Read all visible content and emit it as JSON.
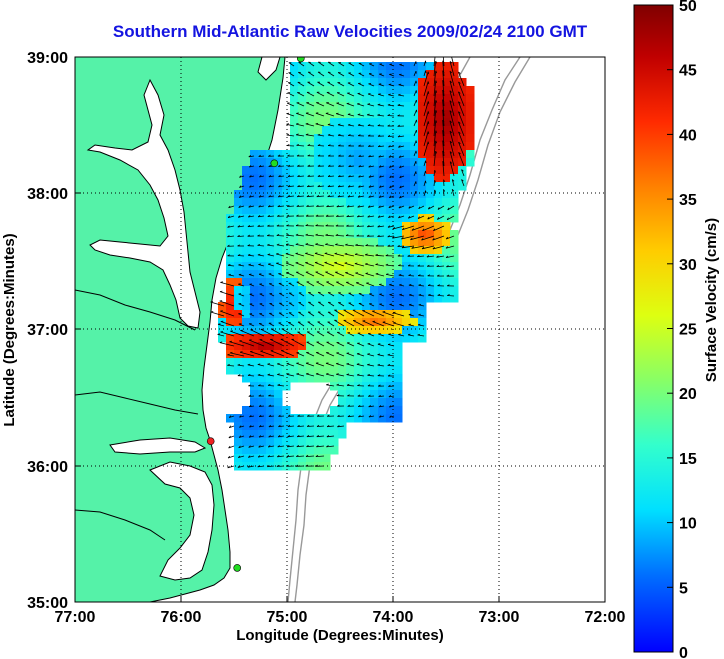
{
  "title": "Southern Mid-Atlantic Raw Velocities 2009/02/24 2100 GMT",
  "x_axis": {
    "label": "Longitude (Degrees:Minutes)",
    "ticks": [
      "77:00",
      "76:00",
      "75:00",
      "74:00",
      "73:00",
      "72:00"
    ]
  },
  "y_axis": {
    "label": "Latitude (Degrees:Minutes)",
    "ticks": [
      "39:00",
      "38:00",
      "37:00",
      "36:00",
      "35:00"
    ]
  },
  "colorbar": {
    "label": "Surface Velocity (cm/s)",
    "min": 0,
    "max": 50,
    "ticks": [
      "0",
      "5",
      "10",
      "15",
      "20",
      "25",
      "30",
      "35",
      "40",
      "45",
      "50"
    ]
  },
  "colors": {
    "land": "#55f2a8",
    "water": "#ffffff",
    "coastline": "#000000",
    "bathymetry": "#999999",
    "title": "#1414e0",
    "station_active": "#22dd22",
    "station_alert": "#ee2222"
  },
  "chart_data": {
    "type": "heatmap",
    "description_units": "cm/s",
    "x_range_deg": [
      -77,
      -72
    ],
    "y_range_deg": [
      35,
      39
    ],
    "stations": [
      {
        "lon": -74.87,
        "lat": 38.99,
        "status": "active"
      },
      {
        "lon": -75.12,
        "lat": 38.22,
        "status": "active"
      },
      {
        "lon": -75.72,
        "lat": 36.18,
        "status": "alert"
      },
      {
        "lon": -75.47,
        "lat": 35.25,
        "status": "active"
      }
    ]
  }
}
